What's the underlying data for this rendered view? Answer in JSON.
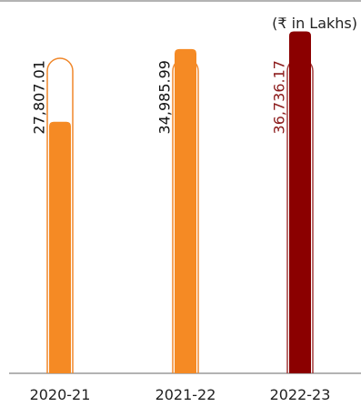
{
  "chart_data": {
    "type": "bar",
    "unit_note": "(₹ in Lakhs)",
    "categories": [
      "2020-21",
      "2021-22",
      "2022-23"
    ],
    "values": [
      27807.01,
      34985.99,
      36736.17
    ],
    "value_labels": [
      "27,807.01",
      "34,985.99",
      "36,736.17"
    ],
    "highlight_index": 2,
    "colors": {
      "default_fill": "#f58a24",
      "default_outline": "#f0872a",
      "highlight_fill": "#8b0000",
      "highlight_outline": "#a23a3a",
      "default_label": "#111111",
      "highlight_label": "#8b1a1a",
      "axis": "#999999"
    },
    "grid": false,
    "legend": "none"
  }
}
